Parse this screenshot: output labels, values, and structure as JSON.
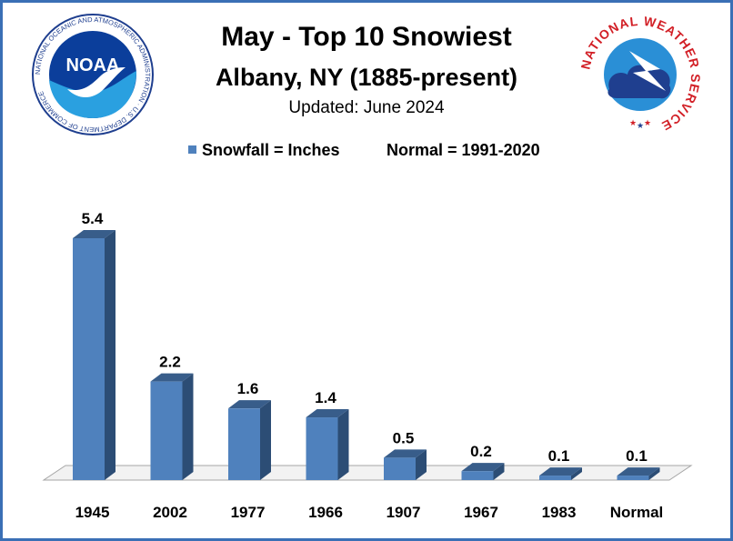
{
  "header": {
    "title": "May - Top 10 Snowiest",
    "subtitle": "Albany, NY (1885-present)",
    "updated": "Updated: June 2024"
  },
  "legend": {
    "series_label": "Snowfall = Inches",
    "normal_label": "Normal = 1991-2020"
  },
  "logos": {
    "noaa_text": "NOAA",
    "noaa_ring_text": "NATIONAL OCEANIC AND ATMOSPHERIC ADMINISTRATION · U.S. DEPARTMENT OF COMMERCE",
    "nws_text": "NATIONAL WEATHER SERVICE"
  },
  "colors": {
    "bar_front": "#4f81bd",
    "bar_side": "#2c4d75",
    "bar_top": "#385d8a",
    "frame": "#3a6fb5"
  },
  "chart_data": {
    "type": "bar",
    "categories": [
      "1945",
      "2002",
      "1977",
      "1966",
      "1907",
      "1967",
      "1983",
      "Normal"
    ],
    "values": [
      5.4,
      2.2,
      1.6,
      1.4,
      0.5,
      0.2,
      0.1,
      0.1
    ],
    "data_labels": [
      "5.4",
      "2.2",
      "1.6",
      "1.4",
      "0.5",
      "0.2",
      "0.1",
      "0.1"
    ],
    "ylim": [
      0,
      5.4
    ],
    "grid": false,
    "legend_position": "top-center"
  }
}
